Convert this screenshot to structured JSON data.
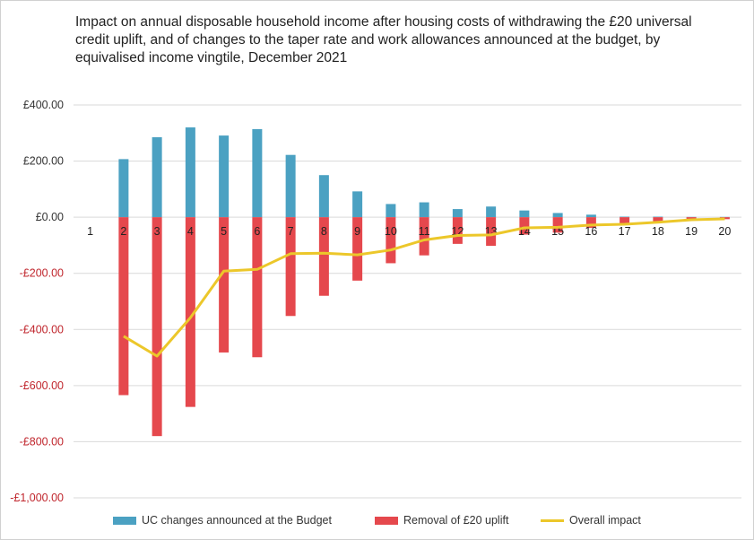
{
  "chart_data": {
    "type": "bar+line",
    "title": "Impact on annual disposable household income after housing costs of withdrawing the £20 universal credit uplift, and of changes to the taper rate and work allowances announced at the budget, by equivalised income vingtile, December 2021",
    "categories": [
      "1",
      "2",
      "3",
      "4",
      "5",
      "6",
      "7",
      "8",
      "9",
      "10",
      "11",
      "12",
      "13",
      "14",
      "15",
      "16",
      "17",
      "18",
      "19",
      "20"
    ],
    "ylim": [
      -1000,
      400
    ],
    "yticks": [
      400,
      200,
      0,
      -200,
      -400,
      -600,
      -800,
      -1000
    ],
    "ytick_labels": [
      "£400.00",
      "£200.00",
      "£0.00",
      "-£200.00",
      "-£400.00",
      "-£600.00",
      "-£800.00",
      "-£1,000.00"
    ],
    "series": [
      {
        "name": "UC changes announced at the Budget",
        "type": "bar",
        "color": "#4ba1c2",
        "values": [
          0,
          207,
          285,
          320,
          291,
          314,
          222,
          150,
          92,
          47,
          53,
          29,
          38,
          24,
          15,
          9,
          2,
          2,
          1,
          1
        ]
      },
      {
        "name": "Removal of £20 uplift",
        "type": "bar",
        "color": "#e5484d",
        "values": [
          0,
          -634,
          -780,
          -676,
          -482,
          -499,
          -352,
          -280,
          -226,
          -164,
          -136,
          -95,
          -102,
          -62,
          -55,
          -38,
          -25,
          -20,
          -10,
          -7
        ]
      },
      {
        "name": "Overall impact",
        "type": "line",
        "color": "#ecc72a",
        "values": [
          null,
          -424,
          -495,
          -358,
          -192,
          -186,
          -130,
          -128,
          -134,
          -117,
          -81,
          -65,
          -63,
          -38,
          -36,
          -28,
          -25,
          -18,
          -9,
          -6
        ]
      }
    ],
    "legend": "bottom",
    "grid": true
  }
}
